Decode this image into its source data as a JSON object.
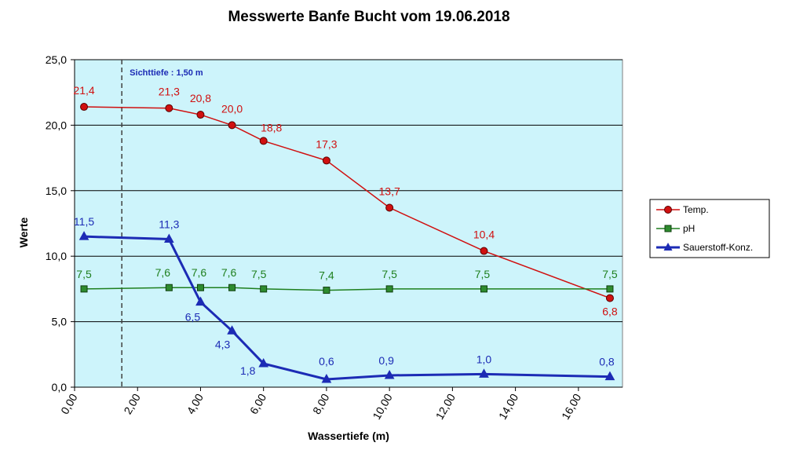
{
  "colors": {
    "plot_bg": "#cdf4fb",
    "temp": "#d01010",
    "ph": "#1e7f1e",
    "ph_marker": "#2e8b2e",
    "oxygen": "#1c2bb5",
    "secchi": "#404040",
    "gridline": "#000000"
  },
  "chart_data": {
    "type": "line",
    "title": "Messwerte Banfe Bucht vom 19.06.2018",
    "xlabel": "Wassertiefe (m)",
    "ylabel": "Werte",
    "xlim": [
      0,
      17.4
    ],
    "ylim": [
      0,
      25
    ],
    "xticks": [
      0,
      2,
      4,
      6,
      8,
      10,
      12,
      14,
      16
    ],
    "xtick_labels": [
      "0,00",
      "2,00",
      "4,00",
      "6,00",
      "8,00",
      "10,00",
      "12,00",
      "14,00",
      "16,00"
    ],
    "yticks": [
      0,
      5,
      10,
      15,
      20,
      25
    ],
    "ytick_labels": [
      "0,0",
      "5,0",
      "10,0",
      "15,0",
      "20,0",
      "25,0"
    ],
    "grid": "horizontal",
    "legend_position": "right",
    "annotation": {
      "text": "Sichttiefe : 1,50 m",
      "x": 1.5
    },
    "series": [
      {
        "name": "Temp.",
        "marker": "circle",
        "x": [
          0.3,
          3,
          4,
          5,
          6,
          8,
          10,
          13,
          17
        ],
        "y": [
          21.4,
          21.3,
          20.8,
          20.0,
          18.8,
          17.3,
          13.7,
          10.4,
          6.8
        ],
        "labels": [
          "21,4",
          "21,3",
          "20,8",
          "20,0",
          "18,8",
          "17,3",
          "13,7",
          "10,4",
          "6,8"
        ]
      },
      {
        "name": "pH",
        "marker": "square",
        "x": [
          0.3,
          3,
          4,
          5,
          6,
          8,
          10,
          13,
          17
        ],
        "y": [
          7.5,
          7.6,
          7.6,
          7.6,
          7.5,
          7.4,
          7.5,
          7.5,
          7.5
        ],
        "labels": [
          "7,5",
          "7,6",
          "7,6",
          "7,6",
          "7,5",
          "7,4",
          "7,5",
          "7,5",
          "7,5"
        ]
      },
      {
        "name": "Sauerstoff-Konz.",
        "marker": "triangle",
        "x": [
          0.3,
          3,
          4,
          5,
          6,
          8,
          10,
          13,
          17
        ],
        "y": [
          11.5,
          11.3,
          6.5,
          4.3,
          1.8,
          0.6,
          0.9,
          1.0,
          0.8
        ],
        "labels": [
          "11,5",
          "11,3",
          "6,5",
          "4,3",
          "1,8",
          "0,6",
          "0,9",
          "1,0",
          "0,8"
        ]
      }
    ]
  }
}
